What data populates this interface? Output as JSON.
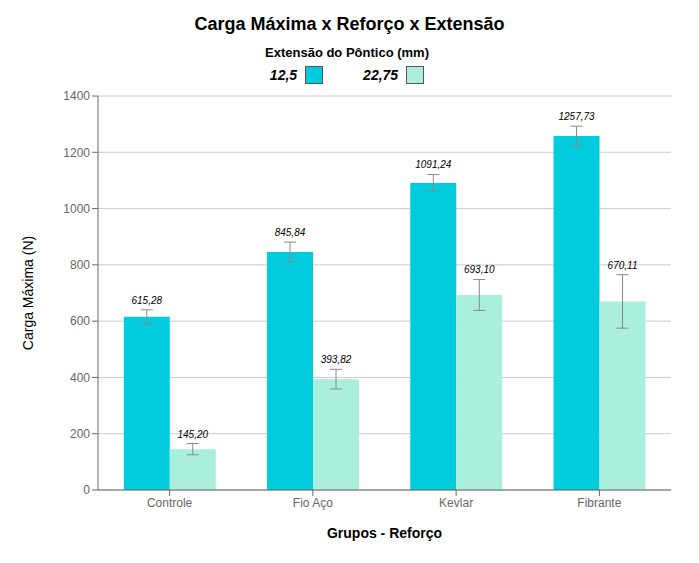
{
  "chart_data": {
    "type": "bar",
    "title": "Carga Máxima x Reforço x Extensão",
    "legend_title": "Extensão do Pôntico (mm)",
    "xlabel": "Grupos - Reforço",
    "ylabel": "Carga  Máxima (N)",
    "categories": [
      "Controle",
      "Fio Aço",
      "Kevlar",
      "Fibrante"
    ],
    "series": [
      {
        "name": "12,5",
        "color": "#00CCDD",
        "values": [
          615.28,
          845.84,
          1091.24,
          1257.73
        ],
        "errors": [
          25,
          35,
          30,
          35
        ],
        "value_labels": [
          "615,28",
          "845,84",
          "1091,24",
          "1257,73"
        ]
      },
      {
        "name": "22,75",
        "color": "#AAEEDD",
        "values": [
          145.2,
          393.82,
          693.1,
          670.11
        ],
        "errors": [
          20,
          35,
          55,
          95
        ],
        "value_labels": [
          "145,20",
          "393,82",
          "693,10",
          "670,11"
        ]
      }
    ],
    "ylim": [
      0,
      1400
    ],
    "yticks": [
      0,
      200,
      400,
      600,
      800,
      1000,
      1200,
      1400
    ],
    "grid": true,
    "legend": "top",
    "data_labels": true
  }
}
